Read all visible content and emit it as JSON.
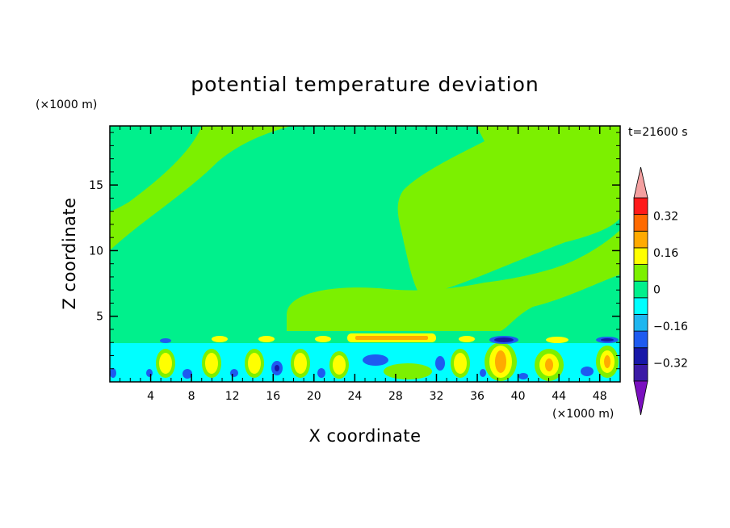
{
  "chart_data": {
    "type": "heatmap",
    "title": "potential temperature deviation",
    "xlabel": "X coordinate",
    "ylabel": "Z coordinate",
    "x_unit": "(×1000 m)",
    "y_unit": "(×1000 m)",
    "time_label": "t=21600 s",
    "xlim": [
      0,
      50
    ],
    "ylim": [
      0,
      19.5
    ],
    "x_ticks": [
      4,
      8,
      12,
      16,
      20,
      24,
      28,
      32,
      36,
      40,
      44,
      48
    ],
    "y_ticks": [
      5,
      10,
      15
    ],
    "colorbar": {
      "levels": [
        -0.48,
        -0.4,
        -0.32,
        -0.24,
        -0.16,
        -0.08,
        0,
        0.08,
        0.16,
        0.24,
        0.32,
        0.4,
        0.48
      ],
      "labeled_levels": [
        0.32,
        0.16,
        0,
        -0.16,
        -0.32
      ],
      "colors": [
        "#7a0fbf",
        "#3b1aa6",
        "#1717a8",
        "#1e5bf0",
        "#1eb6f0",
        "#00ffff",
        "#00f08c",
        "#7cf000",
        "#ffff00",
        "#ffaa00",
        "#ff6a00",
        "#ff1a1a",
        "#f4a0a0"
      ],
      "extend": "both"
    },
    "field_description_levels": {
      "upper_background": 0,
      "lower_wave_band_z": [
        0,
        4
      ]
    }
  }
}
